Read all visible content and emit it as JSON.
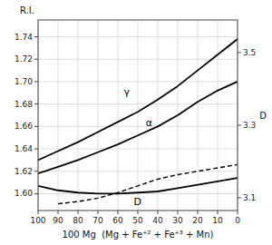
{
  "chart_data": {
    "type": "line",
    "xlabel": "100 Mg  (Mg + Fe⁺² + Fe⁺³ + Mn)",
    "ylabel": "R.I.",
    "y2label": "D",
    "xlim": [
      100,
      0
    ],
    "ylim": [
      1.585,
      1.755
    ],
    "y2lim": [
      3.065,
      3.59
    ],
    "xticks": [
      100,
      90,
      80,
      70,
      60,
      50,
      40,
      30,
      20,
      10,
      0
    ],
    "yticks": [
      {
        "value": 1.6,
        "label": "1.60"
      },
      1.62,
      1.64,
      1.66,
      1.68,
      {
        "value": 1.7,
        "label": "1.70"
      },
      1.72,
      1.74
    ],
    "y2ticks": [
      3.1,
      3.3,
      3.5
    ],
    "grid": true,
    "series": [
      {
        "color": "#000000",
        "x": [
          100,
          90,
          80,
          70,
          60,
          50,
          40,
          30,
          20,
          10,
          0
        ],
        "values": [
          1.63,
          1.638,
          1.646,
          1.655,
          1.664,
          1.673,
          1.684,
          1.696,
          1.71,
          1.724,
          1.738
        ]
      },
      {
        "color": "#000000",
        "x": [
          100,
          90,
          80,
          70,
          60,
          50,
          40,
          30,
          20,
          10,
          0
        ],
        "values": [
          1.618,
          1.624,
          1.63,
          1.637,
          1.644,
          1.652,
          1.66,
          1.67,
          1.682,
          1.692,
          1.7
        ]
      },
      {
        "color": "#000000",
        "x": [
          100,
          90,
          80,
          70,
          60,
          50,
          40,
          30,
          20,
          10,
          0
        ],
        "values": [
          1.607,
          1.603,
          1.601,
          1.6,
          1.6,
          1.601,
          1.602,
          1.605,
          1.608,
          1.611,
          1.614
        ]
      },
      {
        "color": "#000000",
        "line_style": "dashed",
        "x": [
          90,
          80,
          70,
          60,
          50,
          40,
          30,
          20,
          10,
          0
        ],
        "values": [
          1.591,
          1.593,
          1.596,
          1.601,
          1.607,
          1.613,
          1.617,
          1.62,
          1.623,
          1.626
        ]
      }
    ],
    "annotations": [
      {
        "text": "γ",
        "x": 57,
        "y": 1.686
      },
      {
        "text": "α",
        "x": 46,
        "y": 1.659
      },
      {
        "text": "D",
        "x": 52,
        "y": 1.598
      }
    ]
  }
}
